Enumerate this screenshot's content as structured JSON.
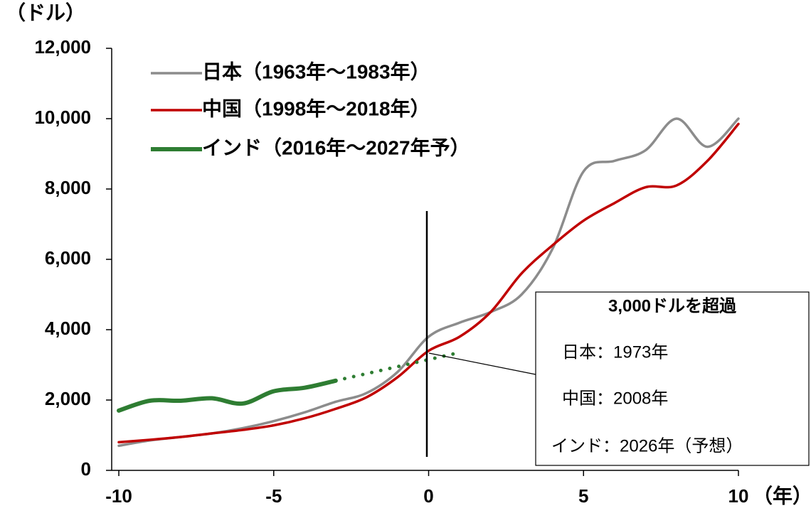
{
  "chart_data": {
    "type": "line",
    "y_unit": "（ドル）",
    "x_unit": "（年）",
    "x": [
      -10,
      -9,
      -8,
      -7,
      -6,
      -5,
      -4,
      -3,
      -2,
      -1,
      0,
      1,
      2,
      3,
      4,
      5,
      6,
      7,
      8,
      9,
      10
    ],
    "xlim": [
      -10.23,
      10
    ],
    "xticks": [
      -10,
      -5,
      0,
      5,
      10
    ],
    "ylim": [
      0,
      12000
    ],
    "yticks": [
      0,
      {
        "value": 2000,
        "label": "2,000"
      },
      {
        "value": 4000,
        "label": "4,000"
      },
      {
        "value": 6000,
        "label": "6,000"
      },
      {
        "value": 8000,
        "label": "8,000"
      },
      {
        "value": 10000,
        "label": "10,000"
      },
      {
        "value": 12000,
        "label": "12,000"
      }
    ],
    "forecast_start": -3,
    "series": [
      {
        "name": "日本（1963年～1983年）",
        "color": "#8c8c8c",
        "values": [
          700,
          850,
          950,
          1050,
          1200,
          1400,
          1650,
          1950,
          2200,
          2800,
          3800,
          4200,
          4500,
          5000,
          6300,
          8500,
          8800,
          9100,
          10000,
          9200,
          10000
        ]
      },
      {
        "name": "中国（1998年～2018年）",
        "color": "#c00000",
        "values": [
          800,
          870,
          950,
          1050,
          1150,
          1280,
          1480,
          1750,
          2080,
          2650,
          3400,
          3800,
          4500,
          5600,
          6400,
          7100,
          7600,
          8050,
          8100,
          8800,
          9850
        ]
      },
      {
        "name": "インド（2016年～2027年予）",
        "color": "#2e7d32",
        "values": [
          1700,
          1980,
          1980,
          2050,
          1900,
          2250,
          2350,
          2550,
          2750,
          2950,
          3150,
          3350,
          null,
          null,
          null,
          null,
          null,
          null,
          null,
          null,
          null
        ]
      }
    ],
    "annotation": {
      "title": "3,000ドルを超過",
      "lines": [
        "日本：1973年",
        "中国：2008年",
        "インド：2026年（予想）"
      ]
    }
  }
}
